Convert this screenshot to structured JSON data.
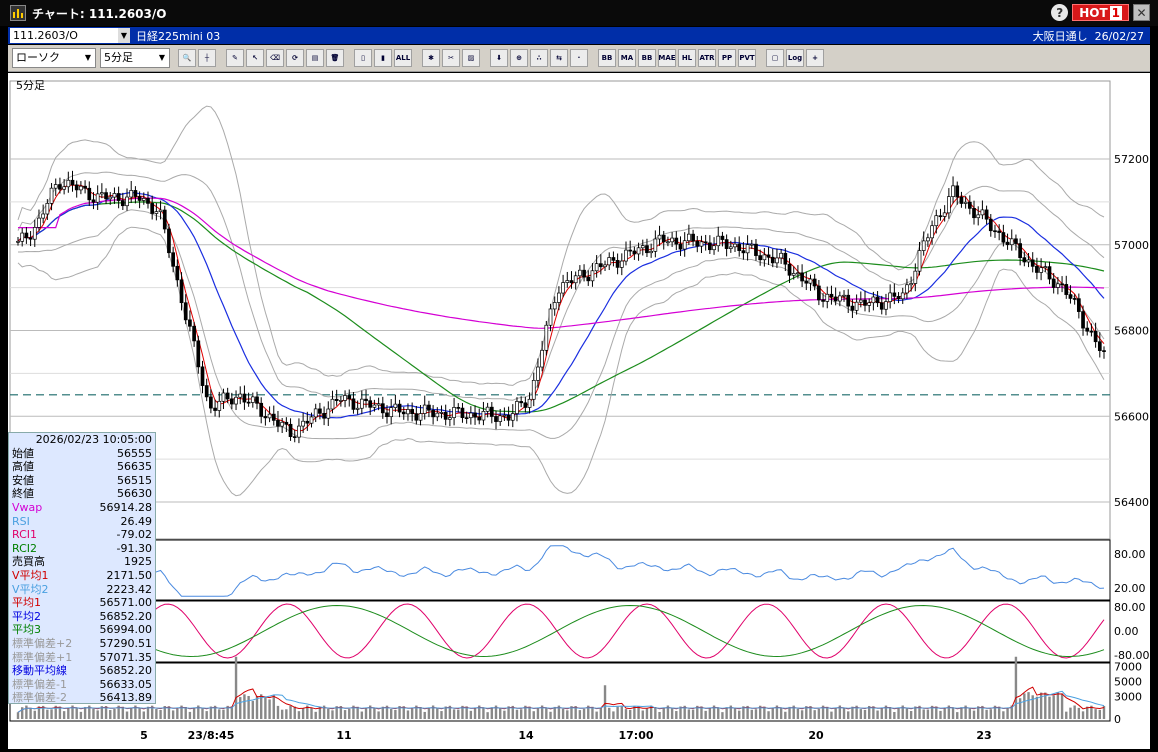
{
  "window": {
    "title": "チャート: 111.2603/O",
    "help_label": "?",
    "hot_label": "HOT",
    "hot_badge": "1",
    "close_label": "✕"
  },
  "infobar": {
    "symbol": "111.2603/O",
    "product": "日経225mini 03",
    "session": "大阪日通し",
    "date": "26/02/27"
  },
  "toolbar": {
    "chart_type": "ローソク",
    "interval": "5分足",
    "buttons": [
      "zoom",
      "crosshair",
      "pencil",
      "cursor",
      "eraser",
      "refresh",
      "print",
      "trash",
      "candle-a",
      "candle-b",
      "all",
      "settings",
      "wrench",
      "paint",
      "down",
      "search",
      "dotchart",
      "arrows",
      "blank",
      "BB-VP",
      "MA",
      "BB",
      "MAE",
      "HL",
      "ATR",
      "PVT-PP",
      "PVT",
      "box",
      "Log",
      "plus-chart"
    ]
  },
  "chart": {
    "interval_label": "5分足",
    "price_ticks": [
      "57200",
      "57000",
      "56800",
      "56600",
      "56400"
    ],
    "rsi_ticks": [
      "80.00",
      "20.00"
    ],
    "rci_ticks": [
      "80.00",
      "0.00",
      "-80.00"
    ],
    "vol_ticks": [
      "7000",
      "5000",
      "3000",
      "0"
    ],
    "x_labels": [
      "5",
      "23/8:45",
      "11",
      "14",
      "17:00",
      "20",
      "23"
    ],
    "dashed_level": 56650
  },
  "datapanel": {
    "datetime": "2026/02/23 10:05:00",
    "rows": [
      {
        "label": "始値",
        "value": "56555",
        "color": "#000"
      },
      {
        "label": "高値",
        "value": "56635",
        "color": "#000"
      },
      {
        "label": "安値",
        "value": "56515",
        "color": "#000"
      },
      {
        "label": "終値",
        "value": "56630",
        "color": "#000"
      },
      {
        "label": "Vwap",
        "value": "56914.28",
        "color": "#d400d4"
      },
      {
        "label": "RSI",
        "value": "26.49",
        "color": "#4aa0e0"
      },
      {
        "label": "RCI1",
        "value": "-79.02",
        "color": "#e0006a"
      },
      {
        "label": "RCI2",
        "value": "-91.30",
        "color": "#008000"
      },
      {
        "label": "売買高",
        "value": "1925",
        "color": "#000"
      },
      {
        "label": "V平均1",
        "value": "2171.50",
        "color": "#d00000"
      },
      {
        "label": "V平均2",
        "value": "2223.42",
        "color": "#4aa0e0"
      },
      {
        "label": "平均1",
        "value": "56571.00",
        "color": "#d00000"
      },
      {
        "label": "平均2",
        "value": "56852.20",
        "color": "#0000e0"
      },
      {
        "label": "平均3",
        "value": "56994.00",
        "color": "#008000"
      },
      {
        "label": "標準偏差+2",
        "value": "57290.51",
        "color": "#999"
      },
      {
        "label": "標準偏差+1",
        "value": "57071.35",
        "color": "#999"
      },
      {
        "label": "移動平均線",
        "value": "56852.20",
        "color": "#0000e0"
      },
      {
        "label": "標準偏差-1",
        "value": "56633.05",
        "color": "#999"
      },
      {
        "label": "標準偏差-2",
        "value": "56413.89",
        "color": "#999"
      }
    ]
  }
}
